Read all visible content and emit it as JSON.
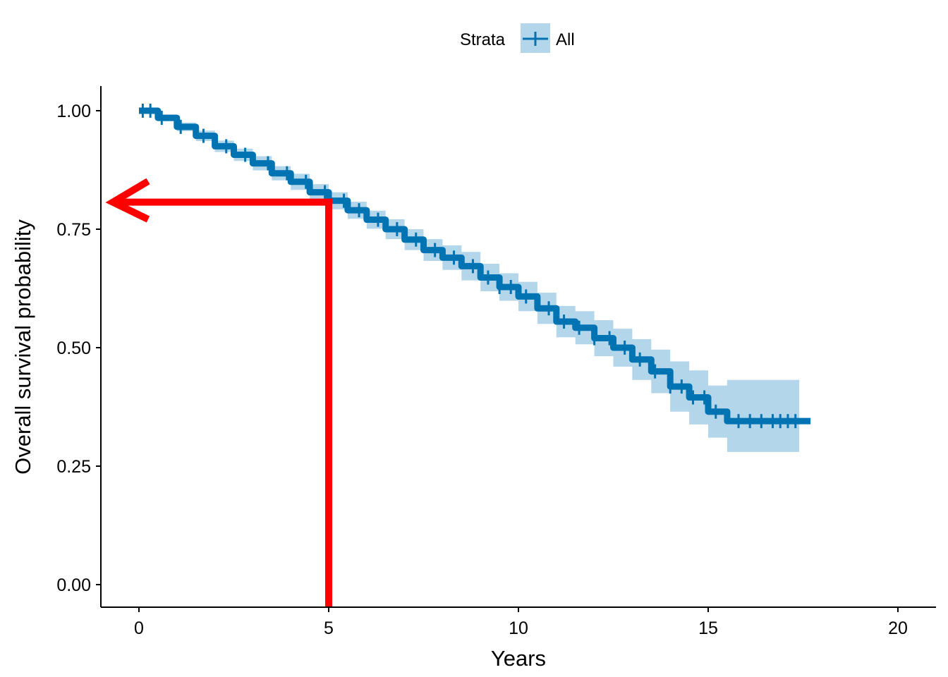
{
  "chart_data": {
    "type": "line",
    "title": "",
    "xlabel": "Years",
    "ylabel": "Overall survival probability",
    "xlim": [
      -1,
      21
    ],
    "ylim": [
      -0.05,
      1.05
    ],
    "x_ticks": [
      "0",
      "5",
      "10",
      "15",
      "20"
    ],
    "y_ticks": [
      "0.00",
      "0.25",
      "0.50",
      "0.75",
      "1.00"
    ],
    "grid": false,
    "legend": {
      "position": "top",
      "title": "Strata",
      "entries": [
        "All"
      ]
    },
    "colors": {
      "line": "#0073b3",
      "band": "#b3d6ea",
      "annotation": "#ff0000"
    },
    "series": [
      {
        "name": "All",
        "x": [
          0,
          0.5,
          1,
          1.5,
          2,
          2.5,
          3,
          3.5,
          4,
          4.5,
          5,
          5.5,
          6,
          6.5,
          7,
          7.5,
          8,
          8.5,
          9,
          9.5,
          10,
          10.5,
          11,
          11.5,
          12,
          12.5,
          13,
          13.5,
          14,
          14.5,
          15,
          15.5,
          16,
          16.5,
          17,
          17.4
        ],
        "y": [
          1.0,
          0.985,
          0.966,
          0.947,
          0.925,
          0.907,
          0.889,
          0.868,
          0.85,
          0.828,
          0.81,
          0.79,
          0.77,
          0.75,
          0.728,
          0.706,
          0.69,
          0.672,
          0.648,
          0.628,
          0.608,
          0.583,
          0.555,
          0.542,
          0.52,
          0.5,
          0.475,
          0.45,
          0.418,
          0.395,
          0.365,
          0.345,
          0.345,
          0.345,
          0.345,
          0.345
        ],
        "lower": [
          1.0,
          0.978,
          0.957,
          0.936,
          0.913,
          0.894,
          0.874,
          0.853,
          0.833,
          0.811,
          0.792,
          0.772,
          0.751,
          0.729,
          0.706,
          0.683,
          0.664,
          0.642,
          0.619,
          0.599,
          0.577,
          0.55,
          0.522,
          0.507,
          0.482,
          0.46,
          0.432,
          0.404,
          0.365,
          0.338,
          0.31,
          0.28,
          0.28,
          0.28,
          0.28,
          0.28
        ],
        "upper": [
          1.0,
          0.992,
          0.975,
          0.958,
          0.937,
          0.92,
          0.904,
          0.883,
          0.867,
          0.845,
          0.828,
          0.808,
          0.789,
          0.771,
          0.75,
          0.729,
          0.716,
          0.702,
          0.677,
          0.657,
          0.639,
          0.616,
          0.588,
          0.577,
          0.558,
          0.54,
          0.518,
          0.496,
          0.471,
          0.452,
          0.42,
          0.432,
          0.432,
          0.432,
          0.432,
          0.432
        ],
        "censor_x": [
          0.1,
          0.3,
          0.6,
          1.1,
          1.7,
          2.3,
          2.8,
          3.4,
          3.9,
          4.4,
          4.9,
          5.4,
          5.8,
          6.3,
          6.8,
          7.3,
          7.8,
          8.3,
          8.8,
          9.2,
          9.5,
          9.8,
          10.2,
          10.8,
          11.2,
          11.6,
          12.0,
          12.4,
          12.8,
          13.2,
          13.6,
          14.0,
          14.3,
          14.6,
          14.9,
          15.2,
          15.8,
          16.1,
          16.4,
          16.7,
          16.9,
          17.1,
          17.3
        ]
      }
    ],
    "annotation": {
      "x": 5,
      "y": 0.81
    }
  }
}
